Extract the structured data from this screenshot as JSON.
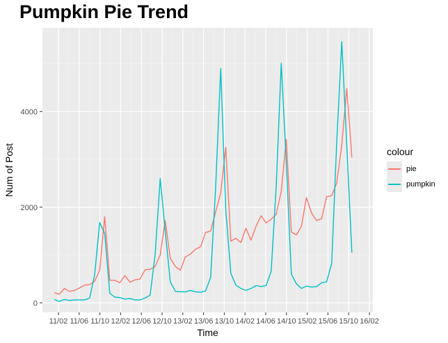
{
  "chart_data": {
    "type": "line",
    "title": "Pumpkin Pie Trend",
    "xlabel": "Time",
    "ylabel": "Num of Post",
    "x_tick_labels": [
      "11/02",
      "11/06",
      "11/10",
      "12/02",
      "12/06",
      "12/10",
      "13/02",
      "13/06",
      "13/10",
      "14/02",
      "14/06",
      "14/10",
      "15/02",
      "15/06",
      "15/10",
      "16/02"
    ],
    "y_ticks": [
      0,
      2000,
      4000
    ],
    "ylim": [
      -200,
      5750
    ],
    "grid": true,
    "legend": {
      "title": "colour",
      "position": "right"
    },
    "series": [
      {
        "name": "pie",
        "color": "#F8766D",
        "values": [
          210,
          180,
          300,
          240,
          260,
          310,
          370,
          380,
          450,
          680,
          1800,
          470,
          470,
          420,
          570,
          430,
          480,
          500,
          690,
          700,
          760,
          1000,
          1720,
          930,
          760,
          680,
          960,
          1020,
          1120,
          1170,
          1470,
          1500,
          1900,
          2300,
          3250,
          1290,
          1350,
          1260,
          1560,
          1310,
          1600,
          1820,
          1670,
          1750,
          1850,
          2330,
          3420,
          1480,
          1420,
          1600,
          2200,
          1880,
          1720,
          1760,
          2220,
          2240,
          2500,
          3300,
          4480,
          3040
        ]
      },
      {
        "name": "pumpkin",
        "color": "#00BFC4",
        "values": [
          70,
          30,
          70,
          50,
          60,
          60,
          60,
          100,
          580,
          1680,
          1450,
          200,
          120,
          110,
          80,
          90,
          60,
          60,
          100,
          160,
          1010,
          2600,
          1500,
          440,
          240,
          230,
          230,
          260,
          230,
          220,
          250,
          530,
          2420,
          4900,
          1950,
          620,
          370,
          300,
          260,
          300,
          360,
          340,
          360,
          660,
          2420,
          5010,
          2950,
          600,
          400,
          300,
          350,
          330,
          340,
          420,
          440,
          820,
          3350,
          5460,
          3300,
          1050
        ]
      }
    ]
  }
}
